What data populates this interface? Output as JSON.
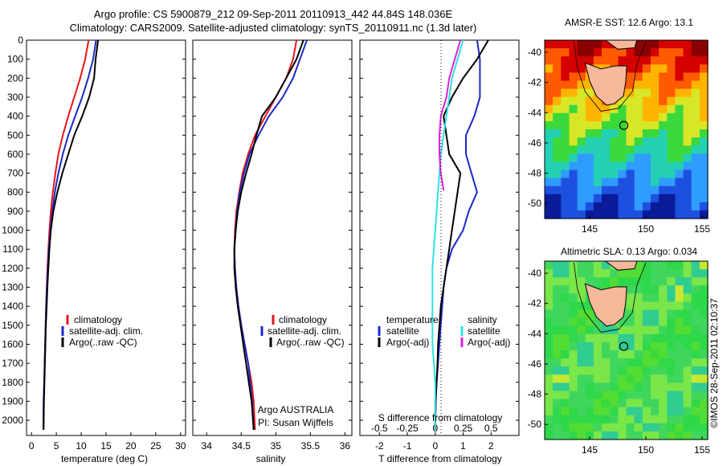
{
  "header": {
    "line1": "Argo profile: CS 5900879_212 09-Sep-2011 20110913_442 44.84S 148.036E",
    "line2": "Climatology: CARS2009. Satellite-adjusted climatology: synTS_20110911.nc (1.3d later)"
  },
  "credit": {
    "org": "Argo AUSTRALIA",
    "pi": "PI: Susan Wijffels",
    "imos": "©IMOS 28-Sep-2011 02:10:37"
  },
  "colors": {
    "climatology": "#e8141c",
    "satellite": "#1c28c8",
    "argo": "#000000",
    "salinity_satellite": "#33e0e0",
    "salinity_argo": "#e020e0",
    "land": "#f5b89a"
  },
  "chart_data": [
    {
      "type": "line",
      "name": "temperature-panel",
      "xlabel": "temperature (deg C)",
      "ylabel": "",
      "xlim": [
        -1,
        31
      ],
      "ylim": [
        2080,
        0
      ],
      "x_ticks": [
        "0",
        "5",
        "10",
        "15",
        "20",
        "25",
        "30"
      ],
      "y_ticks": [
        "0",
        "100",
        "200",
        "300",
        "400",
        "500",
        "600",
        "700",
        "800",
        "900",
        "1000",
        "1100",
        "1200",
        "1300",
        "1400",
        "1500",
        "1600",
        "1700",
        "1800",
        "1900",
        "2000"
      ],
      "legend": [
        "climatology",
        "satellite-adj. clim.",
        "Argo(..raw -QC)"
      ],
      "series": [
        {
          "name": "climatology",
          "color": "#e8141c",
          "x": [
            11.5,
            10.8,
            9.8,
            8.6,
            7.4,
            6.3,
            5.4,
            4.8,
            4.3,
            3.9,
            3.6,
            3.4,
            3.2,
            3.05,
            2.95,
            2.85,
            2.75,
            2.65,
            2.55,
            2.45,
            2.4
          ],
          "y": [
            0,
            100,
            200,
            300,
            400,
            500,
            600,
            700,
            800,
            900,
            1000,
            1100,
            1200,
            1300,
            1400,
            1500,
            1600,
            1700,
            1800,
            1900,
            2050
          ]
        },
        {
          "name": "satellite-adj. clim.",
          "color": "#1c28c8",
          "x": [
            13.0,
            12.4,
            11.4,
            10.2,
            8.8,
            7.4,
            6.3,
            5.4,
            4.7,
            4.2,
            3.8,
            3.5,
            3.3,
            3.1,
            2.95,
            2.85,
            2.75,
            2.65,
            2.55,
            2.45,
            2.4
          ],
          "y": [
            0,
            100,
            200,
            300,
            400,
            500,
            600,
            700,
            800,
            900,
            1000,
            1100,
            1200,
            1300,
            1400,
            1500,
            1600,
            1700,
            1800,
            1900,
            2050
          ]
        },
        {
          "name": "Argo(..raw -QC)",
          "color": "#000000",
          "x": [
            13.4,
            12.9,
            12.6,
            11.6,
            10.2,
            8.6,
            7.4,
            6.2,
            5.2,
            4.4,
            3.9,
            3.6,
            3.4,
            3.2,
            3.05,
            2.9,
            2.8,
            2.7,
            2.6,
            2.5,
            2.45
          ],
          "y": [
            0,
            100,
            200,
            300,
            400,
            500,
            600,
            700,
            800,
            900,
            1000,
            1100,
            1200,
            1300,
            1400,
            1500,
            1600,
            1700,
            1800,
            1900,
            2050
          ]
        }
      ]
    },
    {
      "type": "line",
      "name": "salinity-panel",
      "xlabel": "salinity",
      "xlim": [
        33.8,
        36.1
      ],
      "ylim": [
        2080,
        0
      ],
      "x_ticks": [
        "34",
        "34.5",
        "35",
        "35.5",
        "36"
      ],
      "legend": [
        "climatology",
        "satellite-adj. clim.",
        "Argo(..raw -QC)"
      ],
      "series": [
        {
          "name": "climatology",
          "color": "#e8141c",
          "x": [
            35.3,
            35.25,
            35.15,
            35.0,
            34.85,
            34.7,
            34.6,
            34.52,
            34.47,
            34.43,
            34.41,
            34.4,
            34.41,
            34.43,
            34.46,
            34.5,
            34.55,
            34.6,
            34.65,
            34.68,
            34.7
          ],
          "y": [
            0,
            100,
            200,
            300,
            400,
            500,
            600,
            700,
            800,
            900,
            1000,
            1100,
            1200,
            1300,
            1400,
            1500,
            1600,
            1700,
            1800,
            1900,
            2050
          ]
        },
        {
          "name": "satellite-adj. clim.",
          "color": "#1c28c8",
          "x": [
            35.45,
            35.35,
            35.25,
            35.1,
            34.9,
            34.75,
            34.62,
            34.54,
            34.48,
            34.44,
            34.42,
            34.4,
            34.41,
            34.43,
            34.46,
            34.5,
            34.55,
            34.6,
            34.63,
            34.66,
            34.68
          ],
          "y": [
            0,
            100,
            200,
            300,
            400,
            500,
            600,
            700,
            800,
            900,
            1000,
            1100,
            1200,
            1300,
            1400,
            1500,
            1600,
            1700,
            1800,
            1900,
            2050
          ]
        },
        {
          "name": "Argo(..raw -QC)",
          "color": "#000000",
          "x": [
            35.4,
            35.3,
            35.15,
            35.0,
            34.8,
            34.72,
            34.65,
            34.57,
            34.5,
            34.45,
            34.42,
            34.4,
            34.4,
            34.42,
            34.45,
            34.49,
            34.53,
            34.57,
            34.61,
            34.65,
            34.68
          ],
          "y": [
            0,
            100,
            200,
            300,
            400,
            500,
            600,
            700,
            800,
            900,
            1000,
            1100,
            1200,
            1300,
            1400,
            1500,
            1600,
            1700,
            1800,
            1900,
            2050
          ]
        }
      ]
    },
    {
      "type": "line",
      "name": "difference-panel",
      "xlabel": "T difference from climatology",
      "xlabel_top": "S difference from climatology",
      "xlim": [
        -2.7,
        3.0
      ],
      "ylim": [
        2080,
        0
      ],
      "x_ticks": [
        "-2",
        "-1",
        "0",
        "1",
        "2"
      ],
      "x_ticks_top": [
        "-0.5",
        "-0.25",
        "0",
        "0.25",
        "0.5"
      ],
      "legend_titles": [
        "temperature",
        "salinity"
      ],
      "legend": [
        "satellite",
        "Argo(-adj)",
        "satellite",
        "Argo(-adj)"
      ],
      "series": [
        {
          "name": "temperature satellite",
          "color": "#1c28c8",
          "x": [
            1.5,
            1.6,
            1.6,
            1.6,
            1.4,
            1.1,
            1.1,
            1.3,
            1.5,
            1.2,
            1.0,
            0.6,
            0.4,
            0.3,
            0.25,
            0.2,
            0.15,
            0.1,
            0.05,
            0.0,
            0.0
          ],
          "y": [
            0,
            100,
            200,
            300,
            400,
            500,
            600,
            700,
            800,
            900,
            1000,
            1100,
            1200,
            1300,
            1400,
            1500,
            1600,
            1700,
            1800,
            1900,
            2050
          ]
        },
        {
          "name": "temperature Argo(-adj)",
          "color": "#000000",
          "x": [
            1.9,
            1.5,
            1.0,
            0.6,
            0.3,
            0.4,
            0.5,
            0.9,
            0.8,
            0.7,
            0.6,
            0.5,
            0.4,
            0.3,
            0.2,
            0.15,
            0.1,
            0.08,
            0.05,
            0.02,
            0.0
          ],
          "y": [
            0,
            100,
            200,
            300,
            400,
            500,
            600,
            700,
            800,
            900,
            1000,
            1100,
            1200,
            1300,
            1400,
            1500,
            1600,
            1700,
            1800,
            1900,
            2050
          ]
        },
        {
          "name": "salinity satellite",
          "color": "#33e0e0",
          "x": [
            1.0,
            0.8,
            0.6,
            0.5,
            0.4,
            0.3,
            0.2,
            0.15,
            0.1,
            0.05,
            0.0,
            -0.05,
            -0.1,
            -0.1,
            -0.1,
            -0.1,
            -0.1,
            -0.05,
            0.0,
            0.0,
            0.0
          ],
          "y": [
            0,
            100,
            200,
            300,
            400,
            500,
            600,
            700,
            800,
            900,
            1000,
            1100,
            1200,
            1300,
            1400,
            1500,
            1600,
            1700,
            1800,
            1900,
            2050
          ]
        },
        {
          "name": "salinity Argo(-adj)",
          "color": "#e020e0",
          "x": [
            0.9,
            0.7,
            0.5,
            0.4,
            0.2,
            0.15,
            0.15,
            0.2,
            0.3
          ],
          "y": [
            0,
            100,
            200,
            300,
            400,
            500,
            600,
            700,
            790
          ]
        }
      ]
    },
    {
      "type": "heatmap",
      "name": "amsre-sst-map",
      "title": "AMSR-E SST: 12.6 Argo: 13.1",
      "x_ticks": [
        "145",
        "150",
        "155"
      ],
      "y_ticks": [
        "-40",
        "-42",
        "-44",
        "-46",
        "-48",
        "-50"
      ],
      "xlim": [
        141,
        155.5
      ],
      "ylim": [
        -51,
        -39.2
      ],
      "argo_position": [
        148.036,
        -44.84
      ]
    },
    {
      "type": "heatmap",
      "name": "altimetric-sla-map",
      "title": "Altimetric SLA: 0.13 Argo: 0.034",
      "x_ticks": [
        "145",
        "150",
        "155"
      ],
      "y_ticks": [
        "-40",
        "-42",
        "-44",
        "-46",
        "-48",
        "-50"
      ],
      "xlim": [
        141,
        155.5
      ],
      "ylim": [
        -51,
        -39.2
      ],
      "argo_position": [
        148.036,
        -44.84
      ]
    }
  ]
}
